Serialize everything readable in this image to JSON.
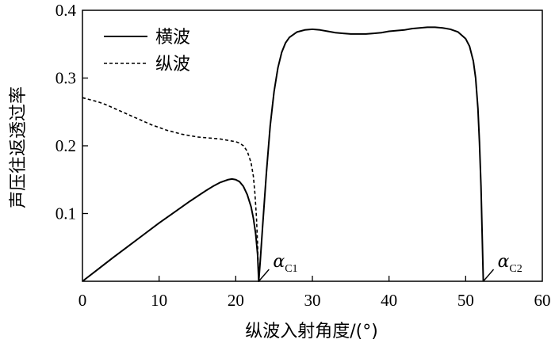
{
  "chart_data": {
    "type": "line",
    "xlabel": "纵波入射角度/(°)",
    "ylabel": "声压往返透过率",
    "xlim": [
      0,
      60
    ],
    "ylim": [
      0,
      0.4
    ],
    "x_ticks": [
      0,
      10,
      20,
      30,
      40,
      50,
      60
    ],
    "x_tick_labels": [
      "0",
      "10",
      "20",
      "30",
      "40",
      "50",
      "60"
    ],
    "y_ticks": [
      0.1,
      0.2,
      0.3,
      0.4
    ],
    "y_tick_labels": [
      "0.1",
      "0.2",
      "0.3",
      "0.4"
    ],
    "grid": false,
    "legend": {
      "position": "top-left"
    },
    "series": [
      {
        "name": "横波",
        "style": "solid",
        "color": "#000000",
        "x": [
          0,
          2,
          4,
          6,
          8,
          10,
          12,
          14,
          16,
          17,
          18,
          19,
          19.5,
          20,
          20.5,
          21,
          21.5,
          22,
          22.3,
          22.6,
          22.85,
          23.0,
          23.2,
          23.5,
          24,
          24.5,
          25,
          25.5,
          26,
          26.5,
          27,
          28,
          29,
          30,
          31,
          32,
          33,
          34,
          35,
          36,
          37,
          38,
          39,
          40,
          41,
          42,
          43,
          44,
          45,
          46,
          47,
          48,
          49,
          50,
          50.5,
          51,
          51.3,
          51.6,
          51.8,
          52.0,
          52.15,
          52.3
        ],
        "y": [
          0,
          0.0175,
          0.035,
          0.052,
          0.069,
          0.086,
          0.102,
          0.118,
          0.133,
          0.14,
          0.146,
          0.15,
          0.151,
          0.15,
          0.147,
          0.14,
          0.128,
          0.11,
          0.093,
          0.07,
          0.04,
          0.0,
          0.03,
          0.08,
          0.16,
          0.23,
          0.28,
          0.315,
          0.338,
          0.352,
          0.36,
          0.368,
          0.371,
          0.372,
          0.371,
          0.369,
          0.367,
          0.366,
          0.365,
          0.365,
          0.365,
          0.366,
          0.367,
          0.369,
          0.37,
          0.371,
          0.373,
          0.374,
          0.375,
          0.375,
          0.374,
          0.372,
          0.368,
          0.358,
          0.347,
          0.325,
          0.3,
          0.255,
          0.205,
          0.14,
          0.07,
          0.0
        ]
      },
      {
        "name": "纵波",
        "style": "dashed",
        "color": "#000000",
        "x": [
          0,
          1,
          2,
          3,
          4,
          5,
          6,
          7,
          8,
          9,
          10,
          11,
          12,
          13,
          14,
          15,
          16,
          17,
          18,
          19,
          20,
          20.5,
          21,
          21.5,
          22,
          22.3,
          22.5,
          22.7,
          22.85,
          23.0
        ],
        "y": [
          0.271,
          0.268,
          0.265,
          0.261,
          0.256,
          0.251,
          0.246,
          0.241,
          0.236,
          0.231,
          0.227,
          0.223,
          0.22,
          0.217,
          0.215,
          0.213,
          0.212,
          0.211,
          0.21,
          0.208,
          0.206,
          0.204,
          0.2,
          0.192,
          0.175,
          0.155,
          0.13,
          0.095,
          0.055,
          0.0
        ]
      }
    ],
    "annotations": [
      {
        "main": "α",
        "sub": "C1",
        "x": 23
      },
      {
        "main": "α",
        "sub": "C2",
        "x": 52.3
      }
    ]
  }
}
